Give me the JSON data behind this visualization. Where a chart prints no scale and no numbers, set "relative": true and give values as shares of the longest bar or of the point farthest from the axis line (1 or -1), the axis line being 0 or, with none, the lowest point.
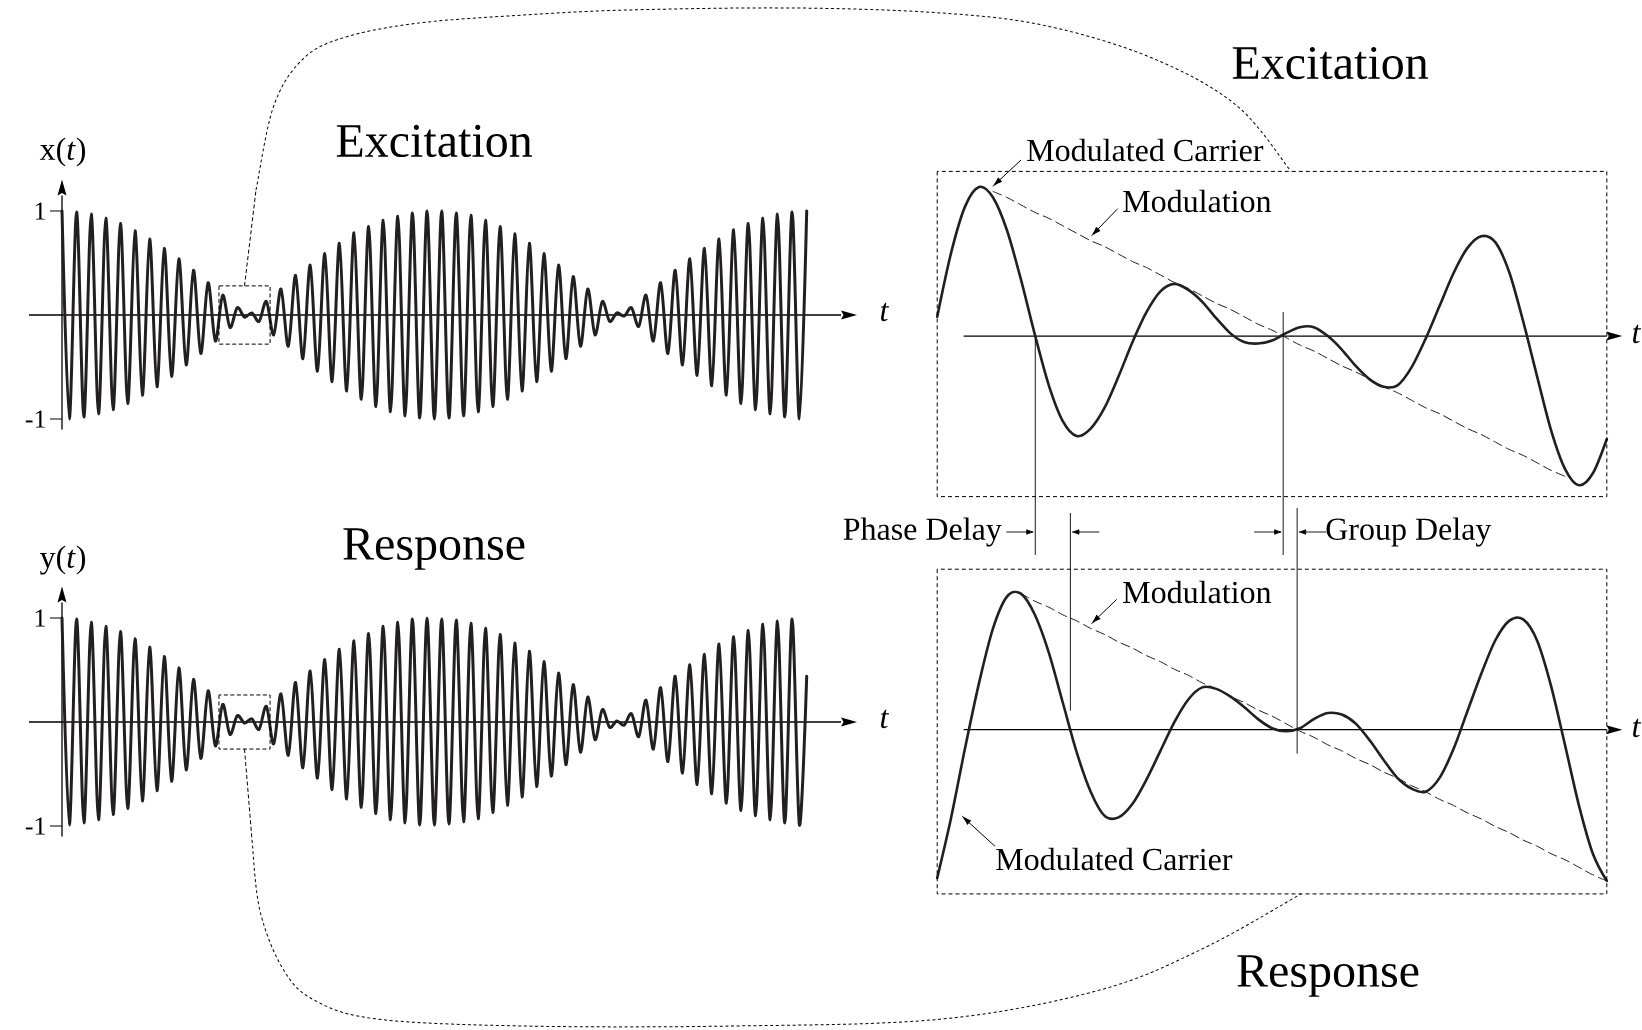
{
  "chart_data": [
    {
      "type": "line",
      "title": "Excitation",
      "xlabel": "t",
      "ylabel": "x(*t*)",
      "ylim": [
        -1.1,
        1.15
      ],
      "yticks": [
        -1,
        1
      ],
      "tick_labels": "y",
      "categories": [
        null,
        null,
        null,
        null,
        null,
        null,
        null,
        null,
        null,
        null,
        null,
        null,
        null,
        null,
        null,
        null,
        null,
        null,
        null,
        null,
        null,
        null,
        null,
        null,
        null,
        null,
        null,
        null,
        null,
        null,
        null,
        null,
        null,
        null,
        null,
        null,
        null,
        null,
        null,
        null,
        null,
        null,
        null,
        null,
        null,
        null,
        null,
        null,
        null,
        null,
        null,
        null,
        null,
        null,
        null,
        null,
        null,
        null,
        null,
        null,
        null,
        null,
        null,
        null,
        null,
        null,
        null,
        null,
        null,
        null,
        null,
        null,
        null,
        null,
        null,
        null,
        null,
        null,
        null,
        null,
        null,
        null,
        null,
        null,
        null,
        null,
        null,
        null,
        null,
        null,
        null,
        null,
        null,
        null,
        null,
        null,
        null,
        null,
        null,
        null,
        null,
        null,
        null
      ],
      "series": [
        {
          "color": "#231f20",
          "values": [
            1.0,
            -1.0,
            0.99,
            -0.98,
            0.97,
            -0.95,
            0.93,
            -0.91,
            0.88,
            -0.85,
            0.81,
            -0.77,
            0.73,
            -0.69,
            0.64,
            -0.59,
            0.54,
            -0.48,
            0.43,
            -0.37,
            0.31,
            -0.25,
            0.19,
            -0.12,
            0.07,
            -0.02,
            0.02,
            -0.06,
            0.13,
            -0.19,
            0.25,
            -0.3,
            0.38,
            -0.42,
            0.48,
            -0.54,
            0.59,
            -0.64,
            0.69,
            -0.73,
            0.79,
            -0.81,
            0.85,
            -0.88,
            0.91,
            -0.93,
            0.95,
            -0.97,
            0.98,
            -0.99,
            1.0,
            -1.0,
            1.0,
            -0.99,
            0.98,
            -0.97,
            0.96,
            -0.93,
            0.91,
            -0.88,
            0.85,
            -0.81,
            0.78,
            -0.73,
            0.69,
            -0.64,
            0.59,
            -0.54,
            0.48,
            -0.42,
            0.37,
            -0.3,
            0.25,
            -0.19,
            0.13,
            -0.06,
            0.02,
            -0.01,
            0.07,
            -0.11,
            0.19,
            -0.25,
            0.31,
            -0.37,
            0.43,
            -0.48,
            0.54,
            -0.58,
            0.64,
            -0.68,
            0.73,
            -0.77,
            0.82,
            -0.85,
            0.88,
            -0.91,
            0.93,
            -0.95,
            0.97,
            -0.98,
            0.99,
            -1.0,
            1.0
          ]
        }
      ]
    },
    {
      "type": "line",
      "title": "Excitation",
      "xlabel": "t",
      "relative": true,
      "categories": [
        null,
        null,
        null,
        null,
        null,
        null,
        null,
        null,
        null,
        null,
        null,
        null,
        null,
        null,
        null,
        null,
        null,
        null,
        null,
        null,
        null,
        null,
        null,
        null,
        null,
        null,
        null,
        null,
        null,
        null,
        null,
        null,
        null,
        null,
        null,
        null,
        null,
        null,
        null,
        null,
        null,
        null,
        null,
        null,
        null,
        null,
        null,
        null,
        null
      ],
      "series": [
        {
          "name": "Modulated Carrier",
          "color": "#231f20",
          "values": [
            0.13,
            0.56,
            0.87,
            1.0,
            0.93,
            0.71,
            0.38,
            0.01,
            -0.33,
            -0.57,
            -0.67,
            -0.62,
            -0.48,
            -0.27,
            -0.04,
            0.16,
            0.3,
            0.35,
            0.31,
            0.23,
            0.12,
            0.02,
            -0.04,
            -0.05,
            -0.03,
            0.02,
            0.06,
            0.06,
            0.0,
            -0.09,
            -0.2,
            -0.29,
            -0.34,
            -0.33,
            -0.21,
            -0.02,
            0.2,
            0.42,
            0.59,
            0.67,
            0.63,
            0.43,
            0.1,
            -0.27,
            -0.63,
            -0.89,
            -1.0,
            -0.92,
            -0.69
          ]
        },
        {
          "name": "Modulation",
          "color": "#231f20",
          "line_style": "dashed",
          "values": [
            null,
            null,
            null,
            null,
            0.97,
            0.93,
            0.88,
            0.83,
            0.79,
            0.74,
            0.69,
            0.64,
            0.6,
            0.55,
            0.5,
            0.46,
            0.41,
            0.36,
            0.32,
            0.27,
            0.22,
            0.18,
            0.13,
            0.08,
            0.04,
            -0.01,
            -0.06,
            -0.1,
            -0.15,
            -0.2,
            -0.24,
            -0.29,
            -0.34,
            -0.38,
            -0.43,
            -0.48,
            -0.52,
            -0.57,
            -0.62,
            -0.66,
            -0.71,
            -0.76,
            -0.8,
            -0.85,
            -0.9,
            -0.94,
            null,
            null,
            null
          ]
        }
      ],
      "annotations": [
        "Phase Delay",
        "Group Delay"
      ]
    },
    {
      "type": "line",
      "title": "Response",
      "xlabel": "t",
      "ylabel": "y(*t*)",
      "ylim": [
        -1.1,
        1.15
      ],
      "yticks": [
        -1,
        1
      ],
      "tick_labels": "y",
      "categories": [
        null,
        null,
        null,
        null,
        null,
        null,
        null,
        null,
        null,
        null,
        null,
        null,
        null,
        null,
        null,
        null,
        null,
        null,
        null,
        null,
        null,
        null,
        null,
        null,
        null,
        null,
        null,
        null,
        null,
        null,
        null,
        null,
        null,
        null,
        null,
        null,
        null,
        null,
        null,
        null,
        null,
        null,
        null,
        null,
        null,
        null,
        null,
        null,
        null,
        null,
        null,
        null,
        null,
        null,
        null,
        null,
        null,
        null,
        null,
        null,
        null,
        null,
        null,
        null,
        null,
        null,
        null,
        null,
        null,
        null,
        null,
        null,
        null,
        null,
        null,
        null,
        null,
        null,
        null,
        null,
        null,
        null,
        null,
        null,
        null,
        null,
        null,
        null,
        null,
        null,
        null,
        null,
        null,
        null,
        null,
        null,
        null,
        null,
        null,
        null,
        null,
        null,
        null
      ],
      "series": [
        {
          "color": "#231f20",
          "values": [
            1.0,
            -0.99,
            0.99,
            -0.97,
            0.96,
            -0.94,
            0.92,
            -0.89,
            0.87,
            -0.83,
            0.8,
            -0.76,
            0.72,
            -0.66,
            0.63,
            -0.57,
            0.52,
            -0.46,
            0.41,
            -0.35,
            0.3,
            -0.23,
            0.17,
            -0.12,
            0.06,
            -0.01,
            0.03,
            -0.07,
            0.15,
            -0.21,
            0.27,
            -0.32,
            0.38,
            -0.44,
            0.49,
            -0.54,
            0.6,
            -0.65,
            0.7,
            -0.74,
            0.78,
            -0.82,
            0.85,
            -0.88,
            0.92,
            -0.94,
            0.96,
            -0.97,
            0.99,
            -0.99,
            1.0,
            -0.99,
            0.99,
            -0.98,
            0.98,
            -0.96,
            0.95,
            -0.93,
            0.9,
            -0.87,
            0.84,
            -0.8,
            0.76,
            -0.72,
            0.68,
            -0.62,
            0.58,
            -0.52,
            0.47,
            -0.41,
            0.36,
            -0.29,
            0.24,
            -0.17,
            0.12,
            -0.05,
            0.01,
            -0.03,
            0.08,
            -0.14,
            0.21,
            -0.26,
            0.33,
            -0.38,
            0.44,
            -0.49,
            0.55,
            -0.6,
            0.65,
            -0.69,
            0.75,
            -0.78,
            0.82,
            -0.85,
            0.88,
            -0.9,
            0.94,
            -0.94,
            0.97,
            -0.97,
            0.99,
            -0.99,
            0.44
          ]
        }
      ]
    },
    {
      "type": "line",
      "title": "Response",
      "xlabel": "t",
      "relative": true,
      "categories": [
        null,
        null,
        null,
        null,
        null,
        null,
        null,
        null,
        null,
        null,
        null,
        null,
        null,
        null,
        null,
        null,
        null,
        null,
        null,
        null,
        null,
        null,
        null,
        null,
        null,
        null,
        null,
        null,
        null,
        null,
        null,
        null,
        null,
        null,
        null,
        null,
        null,
        null,
        null,
        null,
        null,
        null,
        null,
        null,
        null,
        null,
        null,
        null,
        null
      ],
      "series": [
        {
          "name": "Modulated Carrier",
          "color": "#231f20",
          "values": [
            -0.98,
            -0.58,
            -0.12,
            0.31,
            0.67,
            0.88,
            0.9,
            0.76,
            0.51,
            0.18,
            -0.15,
            -0.41,
            -0.57,
            -0.58,
            -0.49,
            -0.33,
            -0.14,
            0.05,
            0.2,
            0.28,
            0.27,
            0.22,
            0.15,
            0.07,
            0.01,
            -0.01,
            0.01,
            0.07,
            0.11,
            0.1,
            0.04,
            -0.07,
            -0.2,
            -0.32,
            -0.39,
            -0.41,
            -0.32,
            -0.13,
            0.12,
            0.37,
            0.59,
            0.72,
            0.73,
            0.59,
            0.29,
            -0.1,
            -0.5,
            -0.82,
            -1.0
          ]
        },
        {
          "name": "Modulation",
          "color": "#231f20",
          "line_style": "dashed",
          "values": [
            null,
            null,
            null,
            null,
            null,
            null,
            0.9,
            0.85,
            0.81,
            0.76,
            0.72,
            0.67,
            0.63,
            0.58,
            0.54,
            0.49,
            0.45,
            0.4,
            0.36,
            0.31,
            0.27,
            0.22,
            0.18,
            0.13,
            0.09,
            0.04,
            -0.01,
            -0.05,
            -0.1,
            -0.14,
            -0.19,
            -0.23,
            -0.28,
            -0.32,
            -0.37,
            -0.41,
            -0.46,
            -0.5,
            -0.55,
            -0.59,
            -0.64,
            -0.68,
            -0.73,
            -0.77,
            -0.82,
            -0.86,
            -0.91,
            -0.96,
            -1.0
          ]
        }
      ]
    }
  ]
}
